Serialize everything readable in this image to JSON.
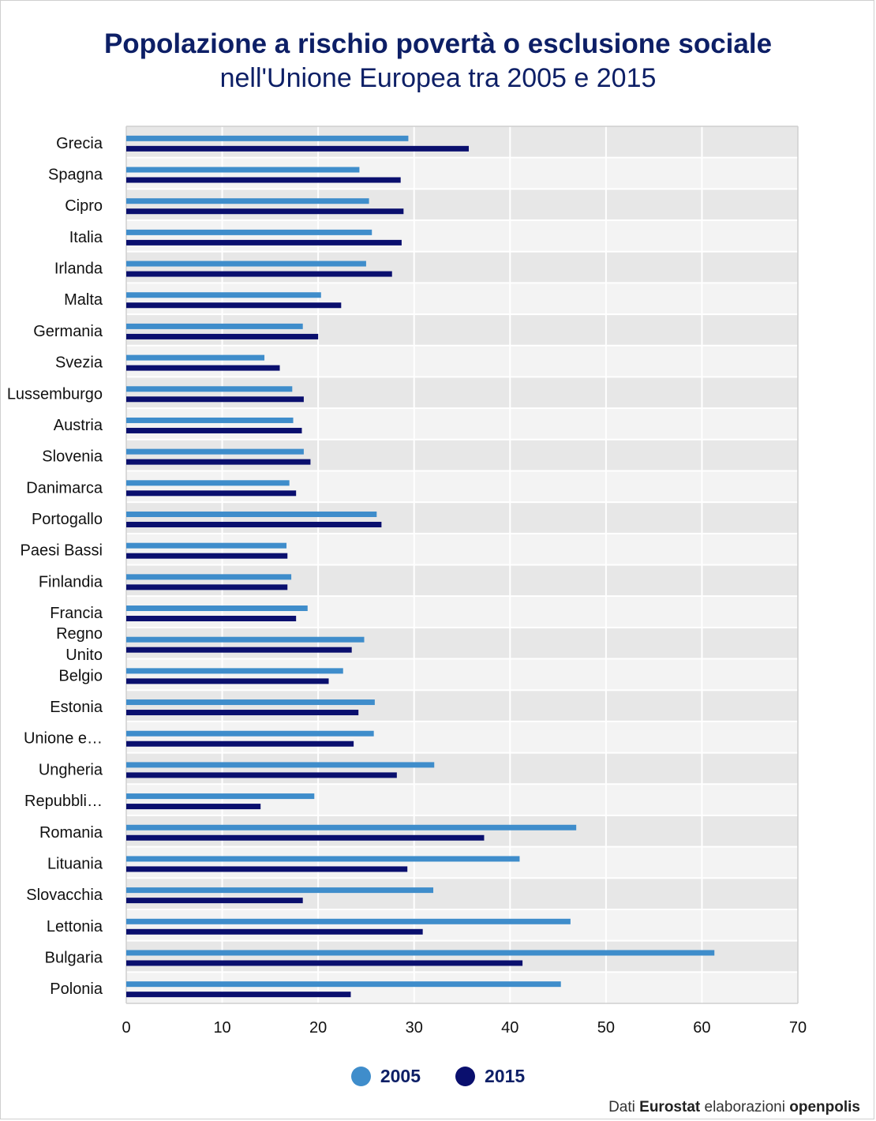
{
  "title": "Popolazione a rischio povertà o esclusione sociale",
  "subtitle": "nell'Unione Europea tra 2005 e 2015",
  "colors": {
    "series_2005": "#3f8dcb",
    "series_2015": "#0a0f6e",
    "band_dark": "#e7e7e7",
    "band_light": "#f3f3f3",
    "grid": "#ffffff",
    "axis_text": "#111111"
  },
  "source": {
    "prefix": "Dati",
    "eurostat": "Eurostat",
    "middle": "elaborazioni",
    "openpolis": "openpolis"
  },
  "chart_data": {
    "type": "bar",
    "orientation": "horizontal",
    "title": "Popolazione a rischio povertà o esclusione sociale",
    "subtitle": "nell'Unione Europea tra 2005 e 2015",
    "xlim": [
      0,
      70
    ],
    "xticks": [
      0,
      10,
      20,
      30,
      40,
      50,
      60,
      70
    ],
    "grid": true,
    "legend_position": "bottom",
    "categories": [
      "Grecia",
      "Spagna",
      "Cipro",
      "Italia",
      "Irlanda",
      "Malta",
      "Germania",
      "Svezia",
      "Lussemburgo",
      "Austria",
      "Slovenia",
      "Danimarca",
      "Portogallo",
      "Paesi Bassi",
      "Finlandia",
      "Francia",
      "Regno\nUnito",
      "Belgio",
      "Estonia",
      "Unione e…",
      "Ungheria",
      "Repubbli…",
      "Romania",
      "Lituania",
      "Slovacchia",
      "Lettonia",
      "Bulgaria",
      "Polonia"
    ],
    "series": [
      {
        "name": "2005",
        "values": [
          29.4,
          24.3,
          25.3,
          25.6,
          25.0,
          20.3,
          18.4,
          14.4,
          17.3,
          17.4,
          18.5,
          17.0,
          26.1,
          16.7,
          17.2,
          18.9,
          24.8,
          22.6,
          25.9,
          25.8,
          32.1,
          19.6,
          46.9,
          41.0,
          32.0,
          46.3,
          61.3,
          45.3
        ]
      },
      {
        "name": "2015",
        "values": [
          35.7,
          28.6,
          28.9,
          28.7,
          27.7,
          22.4,
          20.0,
          16.0,
          18.5,
          18.3,
          19.2,
          17.7,
          26.6,
          16.8,
          16.8,
          17.7,
          23.5,
          21.1,
          24.2,
          23.7,
          28.2,
          14.0,
          37.3,
          29.3,
          18.4,
          30.9,
          41.3,
          23.4
        ]
      }
    ]
  }
}
